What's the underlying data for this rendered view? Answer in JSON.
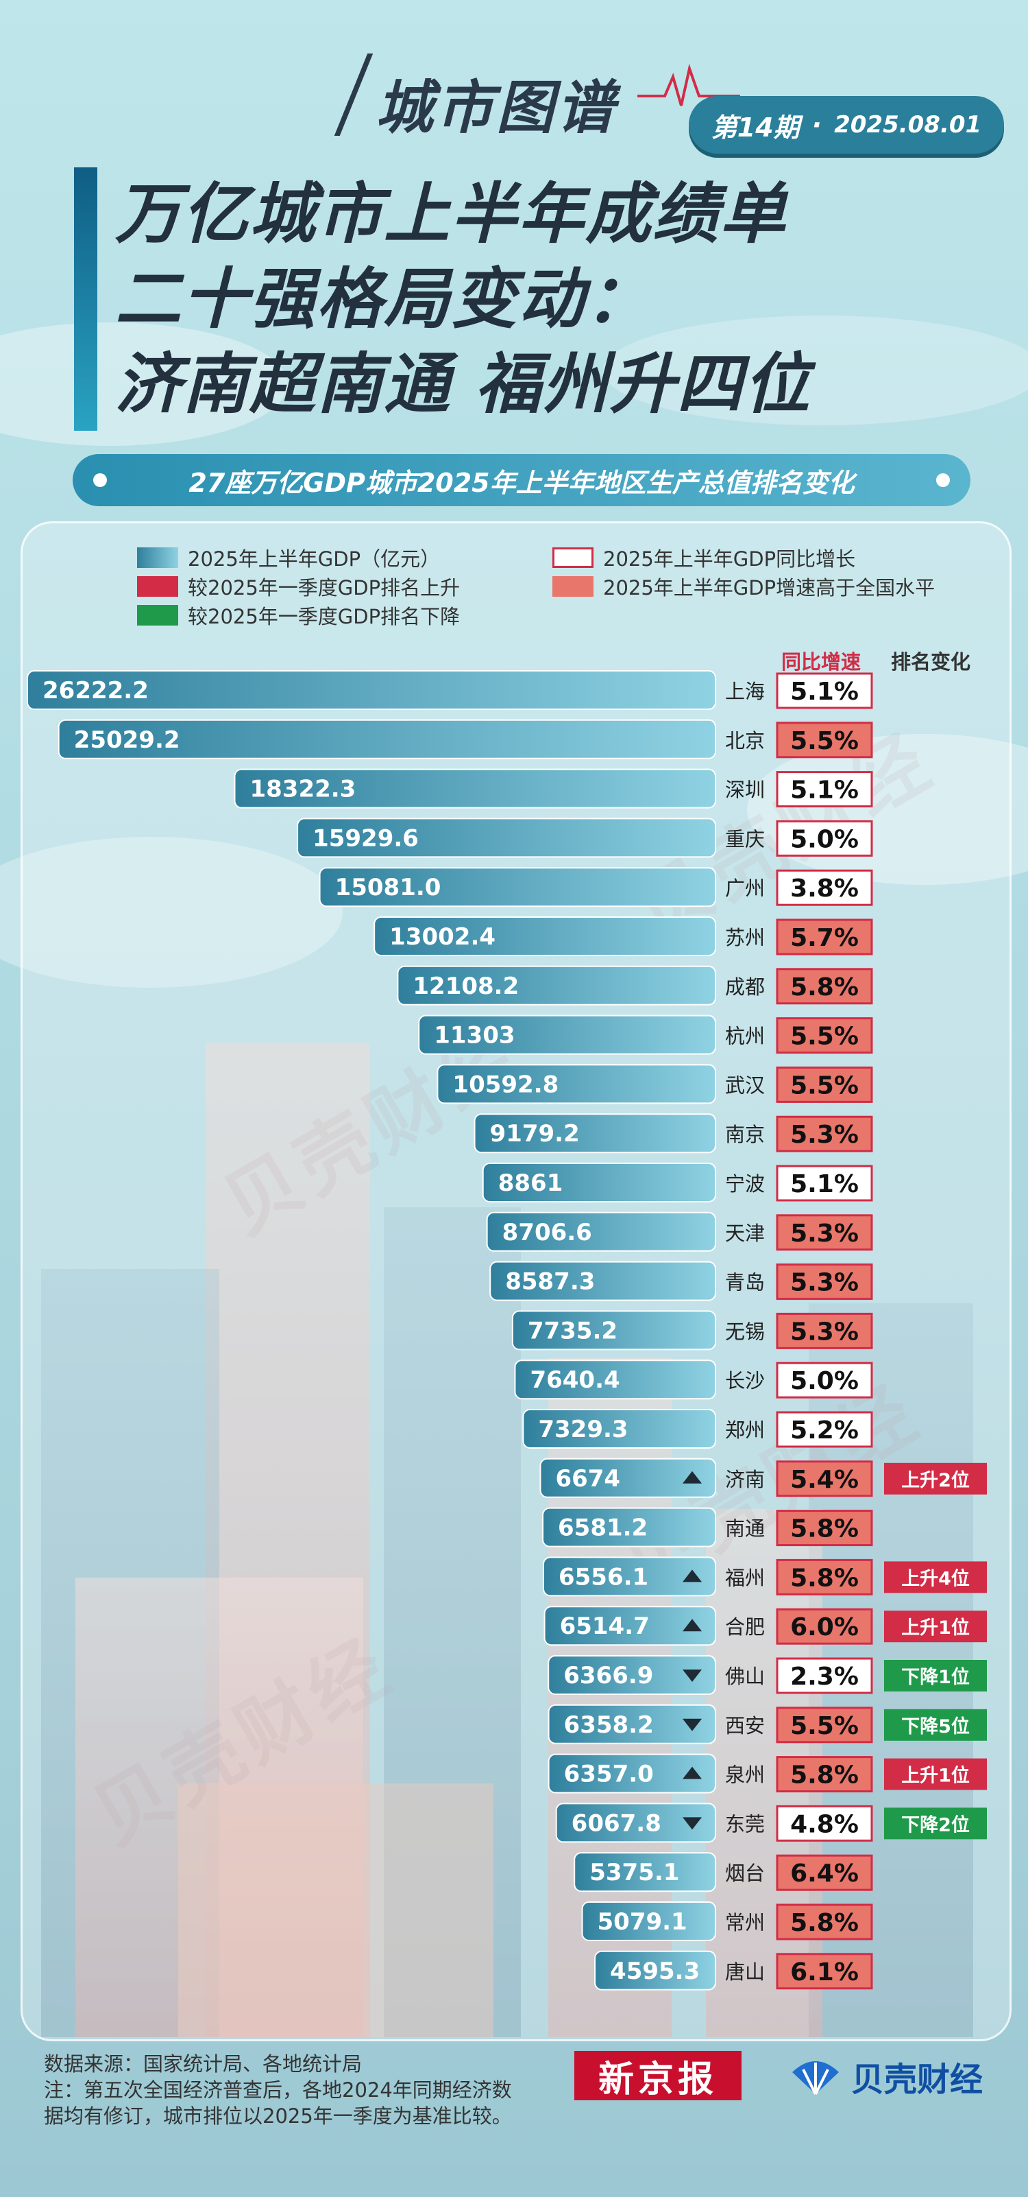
{
  "header": {
    "brand": "城市图谱",
    "issue": "第14期",
    "issue_separator": "·",
    "date": "2025.08.01",
    "title_lines": [
      "万亿城市上半年成绩单",
      "二十强格局变动：",
      "济南超南通 福州升四位"
    ],
    "subtitle": "27座万亿GDP城市2025年上半年地区生产总值排名变化"
  },
  "legend": {
    "gdp": "2025年上半年GDP（亿元）",
    "growth": "2025年上半年GDP同比增长",
    "rank_up": "较2025年一季度GDP排名上升",
    "above_national": "2025年上半年GDP增速高于全国水平",
    "rank_down": "较2025年一季度GDP排名下降"
  },
  "columns": {
    "growth": "同比增速",
    "rank_change": "排名变化"
  },
  "colors": {
    "bar_dark": "#2f7f9c",
    "bar_light": "#8fd2e3",
    "up": "#d22c46",
    "down": "#1f9a4a",
    "above_fill": "#e8766b",
    "box_border": "#d22c46",
    "header_red": "#d22c46"
  },
  "chart_data": {
    "type": "bar",
    "orientation": "horizontal",
    "unit": "亿元",
    "categories": [
      "上海",
      "北京",
      "深圳",
      "重庆",
      "广州",
      "苏州",
      "成都",
      "杭州",
      "武汉",
      "南京",
      "宁波",
      "天津",
      "青岛",
      "无锡",
      "长沙",
      "郑州",
      "济南",
      "南通",
      "福州",
      "合肥",
      "佛山",
      "西安",
      "泉州",
      "东莞",
      "烟台",
      "常州",
      "唐山"
    ],
    "labels": [
      "26222.2",
      "25029.2",
      "18322.3",
      "15929.6",
      "15081.0",
      "13002.4",
      "12108.2",
      "11303",
      "10592.8",
      "9179.2",
      "8861",
      "8706.6",
      "8587.3",
      "7735.2",
      "7640.4",
      "7329.3",
      "6674",
      "6581.2",
      "6556.1",
      "6514.7",
      "6366.9",
      "6358.2",
      "6357.0",
      "6067.8",
      "5375.1",
      "5079.1",
      "4595.3"
    ],
    "values": [
      26222.2,
      25029.2,
      18322.3,
      15929.6,
      15081.0,
      13002.4,
      12108.2,
      11303,
      10592.8,
      9179.2,
      8861,
      8706.6,
      8587.3,
      7735.2,
      7640.4,
      7329.3,
      6674,
      6581.2,
      6556.1,
      6514.7,
      6366.9,
      6358.2,
      6357.0,
      6067.8,
      5375.1,
      5079.1,
      4595.3
    ],
    "growth": [
      "5.1%",
      "5.5%",
      "5.1%",
      "5.0%",
      "3.8%",
      "5.7%",
      "5.8%",
      "5.5%",
      "5.5%",
      "5.3%",
      "5.1%",
      "5.3%",
      "5.3%",
      "5.3%",
      "5.0%",
      "5.2%",
      "5.4%",
      "5.8%",
      "5.8%",
      "6.0%",
      "2.3%",
      "5.5%",
      "5.8%",
      "4.8%",
      "6.4%",
      "5.8%",
      "6.1%"
    ],
    "above_national": [
      false,
      true,
      false,
      false,
      false,
      true,
      true,
      true,
      true,
      true,
      false,
      true,
      true,
      true,
      false,
      false,
      true,
      true,
      true,
      true,
      false,
      true,
      true,
      false,
      true,
      true,
      true
    ],
    "rank_direction": [
      "",
      "",
      "",
      "",
      "",
      "",
      "",
      "",
      "",
      "",
      "",
      "",
      "",
      "",
      "",
      "",
      "up",
      "",
      "up",
      "up",
      "down",
      "down",
      "up",
      "down",
      "",
      "",
      ""
    ],
    "rank_change": [
      "",
      "",
      "",
      "",
      "",
      "",
      "",
      "",
      "",
      "",
      "",
      "",
      "",
      "",
      "",
      "",
      "上升2位",
      "",
      "上升4位",
      "上升1位",
      "下降1位",
      "下降5位",
      "上升1位",
      "下降2位",
      "",
      "",
      ""
    ]
  },
  "footer": {
    "source": "数据来源：国家统计局、各地统计局",
    "note": "注：第五次全国经济普查后，各地2024年同期经济数据均有修订，城市排位以2025年一季度为基准比较。",
    "logo_xjb": "新京报",
    "logo_bk": "贝壳财经"
  },
  "watermark": "贝壳财经"
}
